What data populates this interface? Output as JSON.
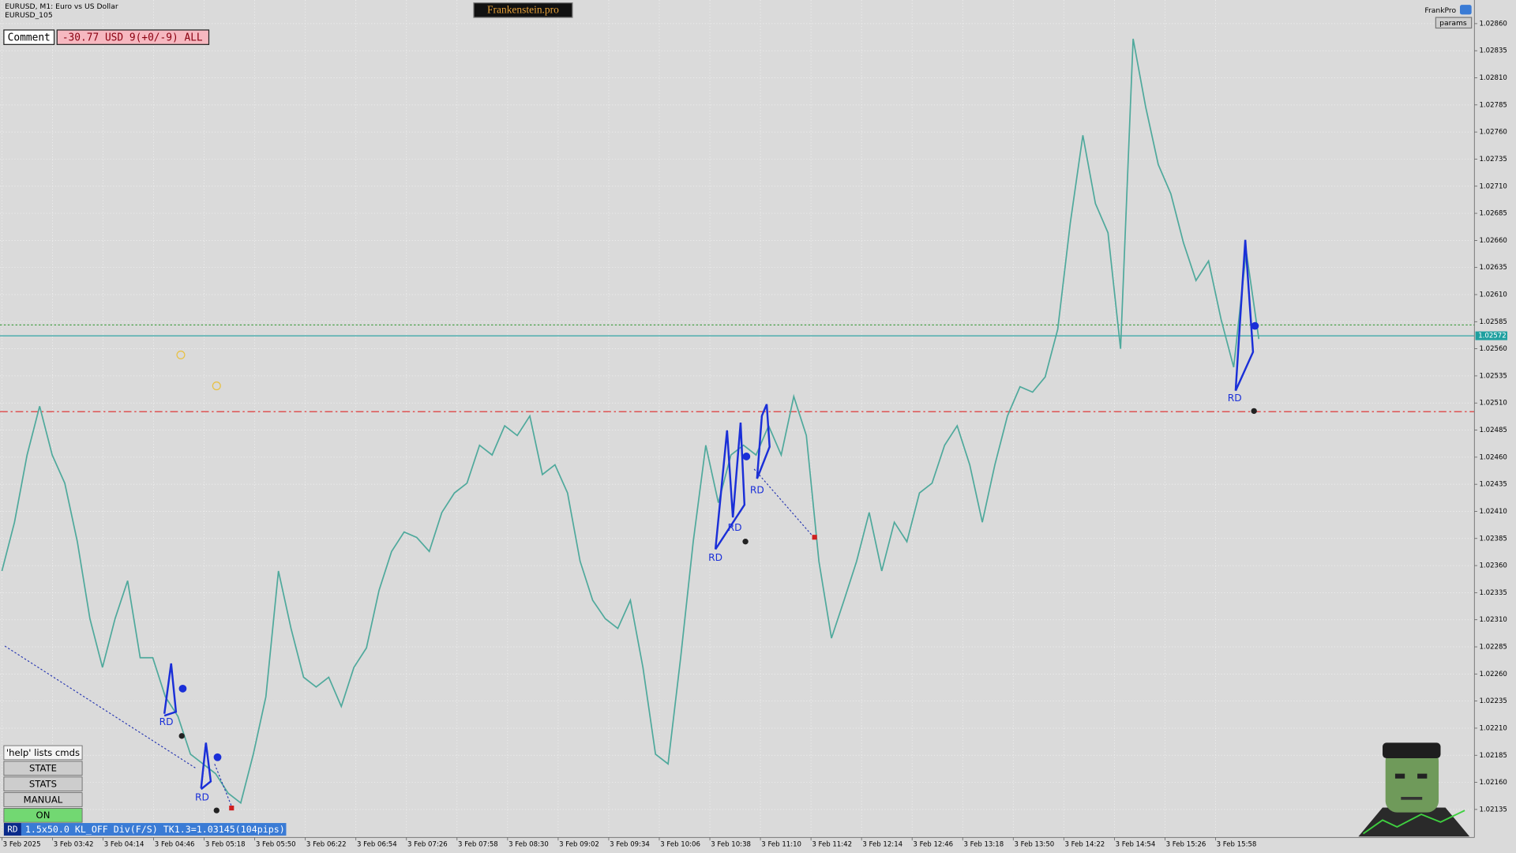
{
  "header": {
    "symbol": "EURUSD, M1:  Euro vs US Dollar",
    "template": "EURUSD_105",
    "brand": "Frankenstein.pro",
    "account": "FrankPro",
    "params_button": "params"
  },
  "comment": {
    "label": "Comment",
    "text": "-30.77 USD 9(+0/-9) ALL"
  },
  "buttons": [
    "'help' lists cmds",
    "STATE",
    "STATS",
    "MANUAL",
    "ON"
  ],
  "status": {
    "tag": "RD",
    "text": "1.5x50.0 KL_OFF Div(F/S) TK1.3=1.03145(104pips)"
  },
  "pattern_labels": [
    "RD",
    "RD",
    "RD",
    "RD",
    "RD",
    "RD"
  ],
  "chart_data": {
    "type": "line",
    "color": "#4fa99c",
    "grid": true,
    "x_labels": [
      "3 Feb 2025",
      "3 Feb 03:42",
      "3 Feb 04:14",
      "3 Feb 04:46",
      "3 Feb 05:18",
      "3 Feb 05:50",
      "3 Feb 06:22",
      "3 Feb 06:54",
      "3 Feb 07:26",
      "3 Feb 07:58",
      "3 Feb 08:30",
      "3 Feb 09:02",
      "3 Feb 09:34",
      "3 Feb 10:06",
      "3 Feb 10:38",
      "3 Feb 11:10",
      "3 Feb 11:42",
      "3 Feb 12:14",
      "3 Feb 12:46",
      "3 Feb 13:18",
      "3 Feb 13:50",
      "3 Feb 14:22",
      "3 Feb 14:54",
      "3 Feb 15:26",
      "3 Feb 15:58"
    ],
    "values": [
      1.02355,
      1.024,
      1.02462,
      1.02507,
      1.02462,
      1.02436,
      1.02382,
      1.02311,
      1.02266,
      1.02311,
      1.02346,
      1.02275,
      1.02275,
      1.02239,
      1.02221,
      1.02186,
      1.02177,
      1.02168,
      1.0215,
      1.02141,
      1.02186,
      1.02239,
      1.02355,
      1.02302,
      1.02257,
      1.02248,
      1.02257,
      1.0223,
      1.02266,
      1.02284,
      1.02337,
      1.02373,
      1.02391,
      1.02386,
      1.02373,
      1.02409,
      1.02427,
      1.02436,
      1.02471,
      1.02462,
      1.02489,
      1.0248,
      1.02498,
      1.02444,
      1.02453,
      1.02427,
      1.02364,
      1.02328,
      1.02311,
      1.02302,
      1.02328,
      1.02266,
      1.02186,
      1.02177,
      1.02275,
      1.02382,
      1.02471,
      1.02418,
      1.02462,
      1.02471,
      1.02462,
      1.02489,
      1.02462,
      1.02516,
      1.0248,
      1.02364,
      1.02293,
      1.02328,
      1.02364,
      1.02409,
      1.02355,
      1.024,
      1.02382,
      1.02427,
      1.02436,
      1.02471,
      1.02489,
      1.02453,
      1.024,
      1.02453,
      1.02498,
      1.02525,
      1.0252,
      1.02534,
      1.02578,
      1.02676,
      1.02757,
      1.02694,
      1.02667,
      1.0256,
      1.02846,
      1.02783,
      1.0273,
      1.02703,
      1.02658,
      1.02623,
      1.02641,
      1.02587,
      1.02543,
      1.0265,
      1.02569
    ],
    "ylim": [
      1.0211,
      1.0288
    ],
    "yticks": [
      {
        "value": 1.0286,
        "label": "1.02860"
      },
      {
        "value": 1.02835,
        "label": "1.02835"
      },
      {
        "value": 1.0281,
        "label": "1.02810"
      },
      {
        "value": 1.02785,
        "label": "1.02785"
      },
      {
        "value": 1.0276,
        "label": "1.02760"
      },
      {
        "value": 1.02735,
        "label": "1.02735"
      },
      {
        "value": 1.0271,
        "label": "1.02710"
      },
      {
        "value": 1.02685,
        "label": "1.02685"
      },
      {
        "value": 1.0266,
        "label": "1.02660"
      },
      {
        "value": 1.02635,
        "label": "1.02635"
      },
      {
        "value": 1.0261,
        "label": "1.02610"
      },
      {
        "value": 1.02585,
        "label": "1.02585"
      },
      {
        "value": 1.0256,
        "label": "1.02560"
      },
      {
        "value": 1.02535,
        "label": "1.02535"
      },
      {
        "value": 1.0251,
        "label": "1.02510"
      },
      {
        "value": 1.02485,
        "label": "1.02485"
      },
      {
        "value": 1.0246,
        "label": "1.02460"
      },
      {
        "value": 1.02435,
        "label": "1.02435"
      },
      {
        "value": 1.0241,
        "label": "1.02410"
      },
      {
        "value": 1.02385,
        "label": "1.02385"
      },
      {
        "value": 1.0236,
        "label": "1.02360"
      },
      {
        "value": 1.02335,
        "label": "1.02335"
      },
      {
        "value": 1.0231,
        "label": "1.02310"
      },
      {
        "value": 1.02285,
        "label": "1.02285"
      },
      {
        "value": 1.0226,
        "label": "1.02260"
      },
      {
        "value": 1.02235,
        "label": "1.02235"
      },
      {
        "value": 1.0221,
        "label": "1.02210"
      },
      {
        "value": 1.02185,
        "label": "1.02185"
      },
      {
        "value": 1.0216,
        "label": "1.02160"
      },
      {
        "value": 1.02135,
        "label": "1.02135"
      }
    ],
    "current_price": {
      "value": 1.02572,
      "label": "1.02572",
      "color": "#1fa0a0"
    },
    "levels": [
      {
        "value": 1.02582,
        "color": "#3a9a3a",
        "style": "dotted"
      },
      {
        "value": 1.02502,
        "color": "#e02828",
        "style": "dashdot"
      }
    ]
  }
}
